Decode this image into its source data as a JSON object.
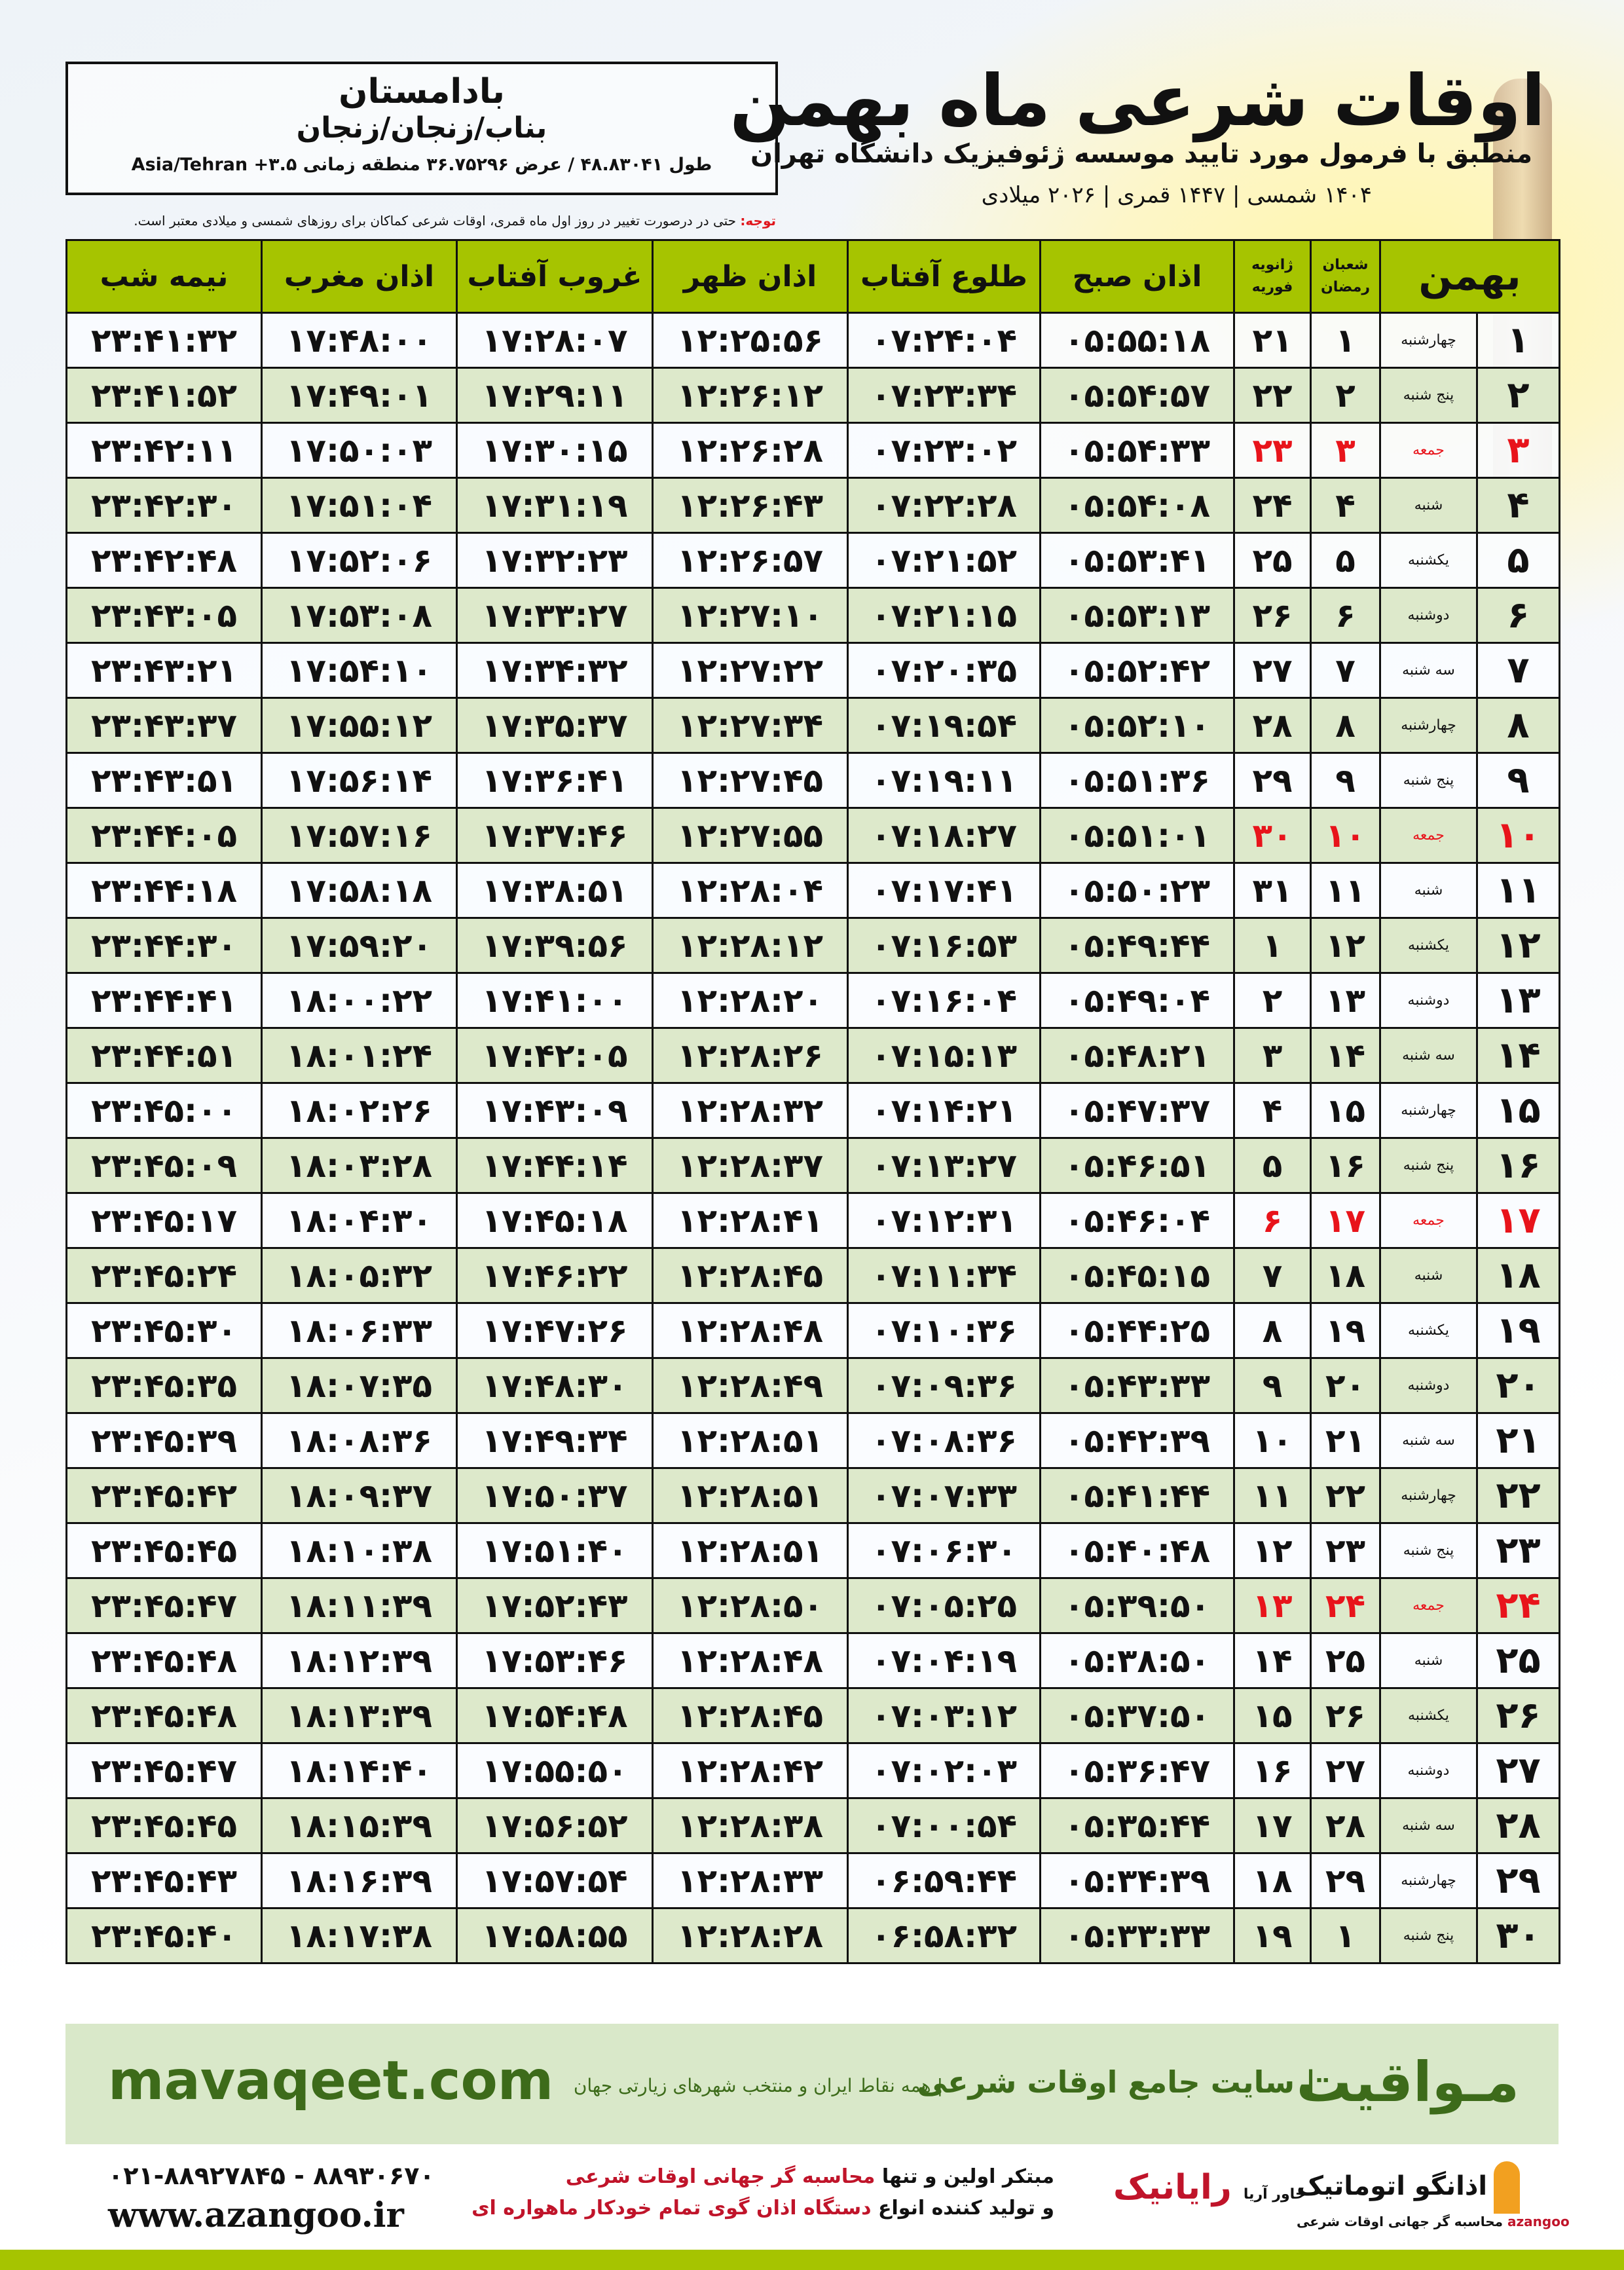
{
  "header": {
    "title": "اوقات شرعی ماه بهمن",
    "subtitle": "منطبق با فرمول مورد تایید موسسه ژئوفیزیک دانشگاه تهران",
    "years": "۱۴۰۴ شمسی | ۱۴۴۷ قمری | ۲۰۲۶ میلادی"
  },
  "location": {
    "name": "بادامستان",
    "region": "بناب/زنجان/زنجان",
    "coords": "طول ۴۸.۸۳۰۴۱ / عرض ۳۶.۷۵۲۹۶ منطقه زمانی ۳.۵+ Asia/Tehran"
  },
  "note": {
    "label": "توجه:",
    "text": " حتی در درصورت تغییر در روز اول ماه قمری، اوقات شرعی کماکان برای روزهای شمسی و میلادی معتبر است."
  },
  "table": {
    "headers": {
      "month": "بهمن",
      "hijri_top": "شعبان",
      "hijri_bottom": "رمضان",
      "greg_top": "ژانویه",
      "greg_bottom": "فوریه",
      "fajr": "اذان صبح",
      "sunrise": "طلوع آفتاب",
      "dhuhr": "اذان ظهر",
      "sunset": "غروب آفتاب",
      "maghrib": "اذان مغرب",
      "midnight": "نیمه شب"
    },
    "holiday_color": "#e8141b",
    "header_color": "#a6c400",
    "rows": [
      {
        "day": "۱",
        "weekday": "چهارشنبه",
        "hijri": "۱",
        "greg": "۲۱",
        "fajr": "۰۵:۵۵:۱۸",
        "sunrise": "۰۷:۲۴:۰۴",
        "dhuhr": "۱۲:۲۵:۵۶",
        "sunset": "۱۷:۲۸:۰۷",
        "maghrib": "۱۷:۴۸:۰۰",
        "midnight": "۲۳:۴۱:۳۲"
      },
      {
        "day": "۲",
        "weekday": "پنج شنبه",
        "hijri": "۲",
        "greg": "۲۲",
        "fajr": "۰۵:۵۴:۵۷",
        "sunrise": "۰۷:۲۳:۳۴",
        "dhuhr": "۱۲:۲۶:۱۲",
        "sunset": "۱۷:۲۹:۱۱",
        "maghrib": "۱۷:۴۹:۰۱",
        "midnight": "۲۳:۴۱:۵۲"
      },
      {
        "day": "۳",
        "weekday": "جمعه",
        "hijri": "۳",
        "greg": "۲۳",
        "fajr": "۰۵:۵۴:۳۳",
        "sunrise": "۰۷:۲۳:۰۲",
        "dhuhr": "۱۲:۲۶:۲۸",
        "sunset": "۱۷:۳۰:۱۵",
        "maghrib": "۱۷:۵۰:۰۳",
        "midnight": "۲۳:۴۲:۱۱"
      },
      {
        "day": "۴",
        "weekday": "شنبه",
        "hijri": "۴",
        "greg": "۲۴",
        "fajr": "۰۵:۵۴:۰۸",
        "sunrise": "۰۷:۲۲:۲۸",
        "dhuhr": "۱۲:۲۶:۴۳",
        "sunset": "۱۷:۳۱:۱۹",
        "maghrib": "۱۷:۵۱:۰۴",
        "midnight": "۲۳:۴۲:۳۰"
      },
      {
        "day": "۵",
        "weekday": "یکشنبه",
        "hijri": "۵",
        "greg": "۲۵",
        "fajr": "۰۵:۵۳:۴۱",
        "sunrise": "۰۷:۲۱:۵۲",
        "dhuhr": "۱۲:۲۶:۵۷",
        "sunset": "۱۷:۳۲:۲۳",
        "maghrib": "۱۷:۵۲:۰۶",
        "midnight": "۲۳:۴۲:۴۸"
      },
      {
        "day": "۶",
        "weekday": "دوشنبه",
        "hijri": "۶",
        "greg": "۲۶",
        "fajr": "۰۵:۵۳:۱۳",
        "sunrise": "۰۷:۲۱:۱۵",
        "dhuhr": "۱۲:۲۷:۱۰",
        "sunset": "۱۷:۳۳:۲۷",
        "maghrib": "۱۷:۵۳:۰۸",
        "midnight": "۲۳:۴۳:۰۵"
      },
      {
        "day": "۷",
        "weekday": "سه شنبه",
        "hijri": "۷",
        "greg": "۲۷",
        "fajr": "۰۵:۵۲:۴۲",
        "sunrise": "۰۷:۲۰:۳۵",
        "dhuhr": "۱۲:۲۷:۲۲",
        "sunset": "۱۷:۳۴:۳۲",
        "maghrib": "۱۷:۵۴:۱۰",
        "midnight": "۲۳:۴۳:۲۱"
      },
      {
        "day": "۸",
        "weekday": "چهارشنبه",
        "hijri": "۸",
        "greg": "۲۸",
        "fajr": "۰۵:۵۲:۱۰",
        "sunrise": "۰۷:۱۹:۵۴",
        "dhuhr": "۱۲:۲۷:۳۴",
        "sunset": "۱۷:۳۵:۳۷",
        "maghrib": "۱۷:۵۵:۱۲",
        "midnight": "۲۳:۴۳:۳۷"
      },
      {
        "day": "۹",
        "weekday": "پنج شنبه",
        "hijri": "۹",
        "greg": "۲۹",
        "fajr": "۰۵:۵۱:۳۶",
        "sunrise": "۰۷:۱۹:۱۱",
        "dhuhr": "۱۲:۲۷:۴۵",
        "sunset": "۱۷:۳۶:۴۱",
        "maghrib": "۱۷:۵۶:۱۴",
        "midnight": "۲۳:۴۳:۵۱"
      },
      {
        "day": "۱۰",
        "weekday": "جمعه",
        "hijri": "۱۰",
        "greg": "۳۰",
        "fajr": "۰۵:۵۱:۰۱",
        "sunrise": "۰۷:۱۸:۲۷",
        "dhuhr": "۱۲:۲۷:۵۵",
        "sunset": "۱۷:۳۷:۴۶",
        "maghrib": "۱۷:۵۷:۱۶",
        "midnight": "۲۳:۴۴:۰۵"
      },
      {
        "day": "۱۱",
        "weekday": "شنبه",
        "hijri": "۱۱",
        "greg": "۳۱",
        "fajr": "۰۵:۵۰:۲۳",
        "sunrise": "۰۷:۱۷:۴۱",
        "dhuhr": "۱۲:۲۸:۰۴",
        "sunset": "۱۷:۳۸:۵۱",
        "maghrib": "۱۷:۵۸:۱۸",
        "midnight": "۲۳:۴۴:۱۸"
      },
      {
        "day": "۱۲",
        "weekday": "یکشنبه",
        "hijri": "۱۲",
        "greg": "۱",
        "fajr": "۰۵:۴۹:۴۴",
        "sunrise": "۰۷:۱۶:۵۳",
        "dhuhr": "۱۲:۲۸:۱۲",
        "sunset": "۱۷:۳۹:۵۶",
        "maghrib": "۱۷:۵۹:۲۰",
        "midnight": "۲۳:۴۴:۳۰"
      },
      {
        "day": "۱۳",
        "weekday": "دوشنبه",
        "hijri": "۱۳",
        "greg": "۲",
        "fajr": "۰۵:۴۹:۰۴",
        "sunrise": "۰۷:۱۶:۰۴",
        "dhuhr": "۱۲:۲۸:۲۰",
        "sunset": "۱۷:۴۱:۰۰",
        "maghrib": "۱۸:۰۰:۲۲",
        "midnight": "۲۳:۴۴:۴۱"
      },
      {
        "day": "۱۴",
        "weekday": "سه شنبه",
        "hijri": "۱۴",
        "greg": "۳",
        "fajr": "۰۵:۴۸:۲۱",
        "sunrise": "۰۷:۱۵:۱۳",
        "dhuhr": "۱۲:۲۸:۲۶",
        "sunset": "۱۷:۴۲:۰۵",
        "maghrib": "۱۸:۰۱:۲۴",
        "midnight": "۲۳:۴۴:۵۱"
      },
      {
        "day": "۱۵",
        "weekday": "چهارشنبه",
        "hijri": "۱۵",
        "greg": "۴",
        "fajr": "۰۵:۴۷:۳۷",
        "sunrise": "۰۷:۱۴:۲۱",
        "dhuhr": "۱۲:۲۸:۳۲",
        "sunset": "۱۷:۴۳:۰۹",
        "maghrib": "۱۸:۰۲:۲۶",
        "midnight": "۲۳:۴۵:۰۰"
      },
      {
        "day": "۱۶",
        "weekday": "پنج شنبه",
        "hijri": "۱۶",
        "greg": "۵",
        "fajr": "۰۵:۴۶:۵۱",
        "sunrise": "۰۷:۱۳:۲۷",
        "dhuhr": "۱۲:۲۸:۳۷",
        "sunset": "۱۷:۴۴:۱۴",
        "maghrib": "۱۸:۰۳:۲۸",
        "midnight": "۲۳:۴۵:۰۹"
      },
      {
        "day": "۱۷",
        "weekday": "جمعه",
        "hijri": "۱۷",
        "greg": "۶",
        "fajr": "۰۵:۴۶:۰۴",
        "sunrise": "۰۷:۱۲:۳۱",
        "dhuhr": "۱۲:۲۸:۴۱",
        "sunset": "۱۷:۴۵:۱۸",
        "maghrib": "۱۸:۰۴:۳۰",
        "midnight": "۲۳:۴۵:۱۷"
      },
      {
        "day": "۱۸",
        "weekday": "شنبه",
        "hijri": "۱۸",
        "greg": "۷",
        "fajr": "۰۵:۴۵:۱۵",
        "sunrise": "۰۷:۱۱:۳۴",
        "dhuhr": "۱۲:۲۸:۴۵",
        "sunset": "۱۷:۴۶:۲۲",
        "maghrib": "۱۸:۰۵:۳۲",
        "midnight": "۲۳:۴۵:۲۴"
      },
      {
        "day": "۱۹",
        "weekday": "یکشنبه",
        "hijri": "۱۹",
        "greg": "۸",
        "fajr": "۰۵:۴۴:۲۵",
        "sunrise": "۰۷:۱۰:۳۶",
        "dhuhr": "۱۲:۲۸:۴۸",
        "sunset": "۱۷:۴۷:۲۶",
        "maghrib": "۱۸:۰۶:۳۳",
        "midnight": "۲۳:۴۵:۳۰"
      },
      {
        "day": "۲۰",
        "weekday": "دوشنبه",
        "hijri": "۲۰",
        "greg": "۹",
        "fajr": "۰۵:۴۳:۳۳",
        "sunrise": "۰۷:۰۹:۳۶",
        "dhuhr": "۱۲:۲۸:۴۹",
        "sunset": "۱۷:۴۸:۳۰",
        "maghrib": "۱۸:۰۷:۳۵",
        "midnight": "۲۳:۴۵:۳۵"
      },
      {
        "day": "۲۱",
        "weekday": "سه شنبه",
        "hijri": "۲۱",
        "greg": "۱۰",
        "fajr": "۰۵:۴۲:۳۹",
        "sunrise": "۰۷:۰۸:۳۶",
        "dhuhr": "۱۲:۲۸:۵۱",
        "sunset": "۱۷:۴۹:۳۴",
        "maghrib": "۱۸:۰۸:۳۶",
        "midnight": "۲۳:۴۵:۳۹"
      },
      {
        "day": "۲۲",
        "weekday": "چهارشنبه",
        "hijri": "۲۲",
        "greg": "۱۱",
        "fajr": "۰۵:۴۱:۴۴",
        "sunrise": "۰۷:۰۷:۳۳",
        "dhuhr": "۱۲:۲۸:۵۱",
        "sunset": "۱۷:۵۰:۳۷",
        "maghrib": "۱۸:۰۹:۳۷",
        "midnight": "۲۳:۴۵:۴۲"
      },
      {
        "day": "۲۳",
        "weekday": "پنج شنبه",
        "hijri": "۲۳",
        "greg": "۱۲",
        "fajr": "۰۵:۴۰:۴۸",
        "sunrise": "۰۷:۰۶:۳۰",
        "dhuhr": "۱۲:۲۸:۵۱",
        "sunset": "۱۷:۵۱:۴۰",
        "maghrib": "۱۸:۱۰:۳۸",
        "midnight": "۲۳:۴۵:۴۵"
      },
      {
        "day": "۲۴",
        "weekday": "جمعه",
        "hijri": "۲۴",
        "greg": "۱۳",
        "fajr": "۰۵:۳۹:۵۰",
        "sunrise": "۰۷:۰۵:۲۵",
        "dhuhr": "۱۲:۲۸:۵۰",
        "sunset": "۱۷:۵۲:۴۳",
        "maghrib": "۱۸:۱۱:۳۹",
        "midnight": "۲۳:۴۵:۴۷"
      },
      {
        "day": "۲۵",
        "weekday": "شنبه",
        "hijri": "۲۵",
        "greg": "۱۴",
        "fajr": "۰۵:۳۸:۵۰",
        "sunrise": "۰۷:۰۴:۱۹",
        "dhuhr": "۱۲:۲۸:۴۸",
        "sunset": "۱۷:۵۳:۴۶",
        "maghrib": "۱۸:۱۲:۳۹",
        "midnight": "۲۳:۴۵:۴۸"
      },
      {
        "day": "۲۶",
        "weekday": "یکشنبه",
        "hijri": "۲۶",
        "greg": "۱۵",
        "fajr": "۰۵:۳۷:۵۰",
        "sunrise": "۰۷:۰۳:۱۲",
        "dhuhr": "۱۲:۲۸:۴۵",
        "sunset": "۱۷:۵۴:۴۸",
        "maghrib": "۱۸:۱۳:۳۹",
        "midnight": "۲۳:۴۵:۴۸"
      },
      {
        "day": "۲۷",
        "weekday": "دوشنبه",
        "hijri": "۲۷",
        "greg": "۱۶",
        "fajr": "۰۵:۳۶:۴۷",
        "sunrise": "۰۷:۰۲:۰۳",
        "dhuhr": "۱۲:۲۸:۴۲",
        "sunset": "۱۷:۵۵:۵۰",
        "maghrib": "۱۸:۱۴:۴۰",
        "midnight": "۲۳:۴۵:۴۷"
      },
      {
        "day": "۲۸",
        "weekday": "سه شنبه",
        "hijri": "۲۸",
        "greg": "۱۷",
        "fajr": "۰۵:۳۵:۴۴",
        "sunrise": "۰۷:۰۰:۵۴",
        "dhuhr": "۱۲:۲۸:۳۸",
        "sunset": "۱۷:۵۶:۵۲",
        "maghrib": "۱۸:۱۵:۳۹",
        "midnight": "۲۳:۴۵:۴۵"
      },
      {
        "day": "۲۹",
        "weekday": "چهارشنبه",
        "hijri": "۲۹",
        "greg": "۱۸",
        "fajr": "۰۵:۳۴:۳۹",
        "sunrise": "۰۶:۵۹:۴۴",
        "dhuhr": "۱۲:۲۸:۳۳",
        "sunset": "۱۷:۵۷:۵۴",
        "maghrib": "۱۸:۱۶:۳۹",
        "midnight": "۲۳:۴۵:۴۳"
      },
      {
        "day": "۳۰",
        "weekday": "پنج شنبه",
        "hijri": "۱",
        "greg": "۱۹",
        "fajr": "۰۵:۳۳:۳۳",
        "sunrise": "۰۶:۵۸:۳۲",
        "dhuhr": "۱۲:۲۸:۲۸",
        "sunset": "۱۷:۵۸:۵۵",
        "maghrib": "۱۸:۱۷:۳۸",
        "midnight": "۲۳:۴۵:۴۰"
      }
    ]
  },
  "banner": {
    "brand": "مـواقیت",
    "tagline": "| سایت جامع اوقات شرعی",
    "tagline2": "| همه نقاط ایران و منتخب شهرهای زیارتی جهان",
    "site": "mavaqeet.com"
  },
  "footer": {
    "phone": "۰۲۱-۸۸۹۲۷۸۴۵ - ۸۸۹۳۰۶۷۰",
    "website": "www.azangoo.ir",
    "promo_1a": "مبتکر اولین و تنها ",
    "promo_1b": "محاسبه گر جهانی اوقات شرعی",
    "promo_2a": "و تولید کننده انواع ",
    "promo_2b": "دستگاه اذان گوی تمام خودکار ماهواره ای",
    "logo_rayanik": "رایانیک",
    "logo_rayanik_sub": "خاور آریا",
    "logo_azangoo": "اذانگو اتوماتیک",
    "logo_azangoo_sub": "محاسبه گر جهانی اوقات شرعی",
    "logo_azangoo_latin": "azangoo"
  }
}
